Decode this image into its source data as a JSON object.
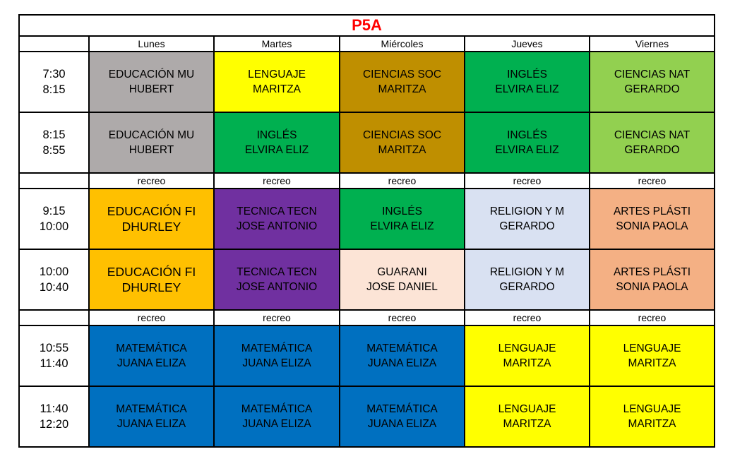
{
  "title": "P5A",
  "days": [
    "Lunes",
    "Martes",
    "Miércoles",
    "Jueves",
    "Viernes"
  ],
  "break_label": "recreo",
  "rows": [
    {
      "type": "slot",
      "start": "7:30",
      "end": "8:15",
      "cells": [
        {
          "subject": "EDUCACIÓN MU",
          "teacher": "HUBERT",
          "color": "#aeaaaa"
        },
        {
          "subject": "LENGUAJE",
          "teacher": "MARITZA",
          "color": "#ffff00"
        },
        {
          "subject": "CIENCIAS SOC",
          "teacher": "MARITZA",
          "color": "#bf8f00"
        },
        {
          "subject": "INGLÉS",
          "teacher": "ELVIRA ELIZ",
          "color": "#00b050"
        },
        {
          "subject": "CIENCIAS NAT",
          "teacher": "GERARDO",
          "color": "#92d050"
        }
      ]
    },
    {
      "type": "slot",
      "start": "8:15",
      "end": "8:55",
      "cells": [
        {
          "subject": "EDUCACIÓN MU",
          "teacher": "HUBERT",
          "color": "#aeaaaa"
        },
        {
          "subject": "INGLÉS",
          "teacher": "ELVIRA ELIZ",
          "color": "#00b050"
        },
        {
          "subject": "CIENCIAS SOC",
          "teacher": "MARITZA",
          "color": "#bf8f00"
        },
        {
          "subject": "INGLÉS",
          "teacher": "ELVIRA ELIZ",
          "color": "#00b050"
        },
        {
          "subject": "CIENCIAS NAT",
          "teacher": "GERARDO",
          "color": "#92d050"
        }
      ]
    },
    {
      "type": "break"
    },
    {
      "type": "slot",
      "start": "9:15",
      "end": "10:00",
      "cells": [
        {
          "subject": "EDUCACIÓN FI",
          "teacher": "DHURLEY",
          "color": "#ffc000",
          "big": true
        },
        {
          "subject": "TECNICA TECN",
          "teacher": "JOSE ANTONIO",
          "color": "#7030a0"
        },
        {
          "subject": "INGLÉS",
          "teacher": "ELVIRA ELIZ",
          "color": "#00b050"
        },
        {
          "subject": "RELIGION Y M",
          "teacher": "GERARDO",
          "color": "#d9e1f2"
        },
        {
          "subject": "ARTES PLÁSTI",
          "teacher": "SONIA PAOLA",
          "color": "#f4b084"
        }
      ]
    },
    {
      "type": "slot",
      "start": "10:00",
      "end": "10:40",
      "cells": [
        {
          "subject": "EDUCACIÓN FI",
          "teacher": "DHURLEY",
          "color": "#ffc000",
          "big": true
        },
        {
          "subject": "TECNICA TECN",
          "teacher": "JOSE ANTONIO",
          "color": "#7030a0"
        },
        {
          "subject": "GUARANI",
          "teacher": "JOSE DANIEL",
          "color": "#fce4d6"
        },
        {
          "subject": "RELIGION Y M",
          "teacher": "GERARDO",
          "color": "#d9e1f2"
        },
        {
          "subject": "ARTES PLÁSTI",
          "teacher": "SONIA PAOLA",
          "color": "#f4b084"
        }
      ]
    },
    {
      "type": "break"
    },
    {
      "type": "slot",
      "start": "10:55",
      "end": "11:40",
      "cells": [
        {
          "subject": "MATEMÁTICA",
          "teacher": "JUANA ELIZA",
          "color": "#0070c0"
        },
        {
          "subject": "MATEMÁTICA",
          "teacher": "JUANA ELIZA",
          "color": "#0070c0"
        },
        {
          "subject": "MATEMÁTICA",
          "teacher": "JUANA ELIZA",
          "color": "#0070c0"
        },
        {
          "subject": "LENGUAJE",
          "teacher": "MARITZA",
          "color": "#ffff00"
        },
        {
          "subject": "LENGUAJE",
          "teacher": "MARITZA",
          "color": "#ffff00"
        }
      ]
    },
    {
      "type": "slot",
      "start": "11:40",
      "end": "12:20",
      "cells": [
        {
          "subject": "MATEMÁTICA",
          "teacher": "JUANA ELIZA",
          "color": "#0070c0"
        },
        {
          "subject": "MATEMÁTICA",
          "teacher": "JUANA ELIZA",
          "color": "#0070c0"
        },
        {
          "subject": "MATEMÁTICA",
          "teacher": "JUANA ELIZA",
          "color": "#0070c0"
        },
        {
          "subject": "LENGUAJE",
          "teacher": "MARITZA",
          "color": "#ffff00"
        },
        {
          "subject": "LENGUAJE",
          "teacher": "MARITZA",
          "color": "#ffff00"
        }
      ]
    }
  ]
}
